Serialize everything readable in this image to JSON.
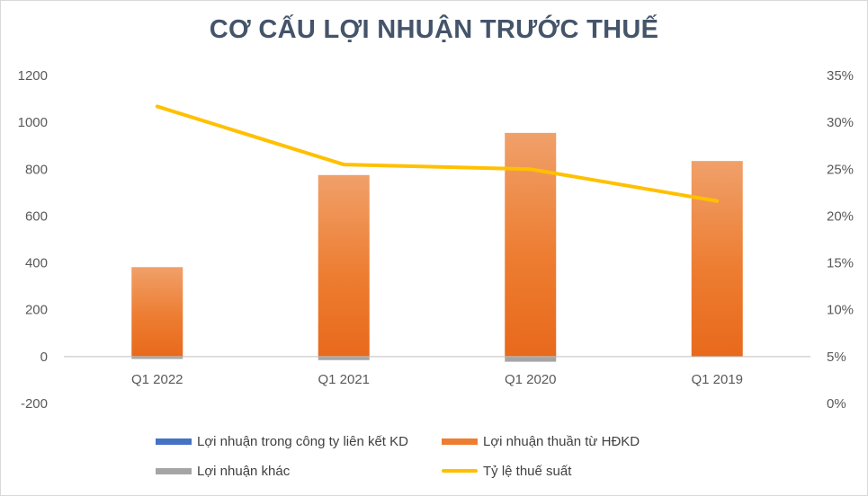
{
  "chart_data": {
    "type": "bar",
    "title": "CƠ CẤU LỢI NHUẬN TRƯỚC THUẾ",
    "categories": [
      "Q1 2022",
      "Q1 2021",
      "Q1 2020",
      "Q1 2019"
    ],
    "series": [
      {
        "name": "Lợi nhuận trong công ty liên kết KD",
        "type": "bar",
        "axis": "left",
        "values": [
          0,
          0,
          0,
          0
        ],
        "color": "#4472c4"
      },
      {
        "name": "Lợi nhuận thuần từ HĐKD",
        "type": "bar",
        "axis": "left",
        "values": [
          382,
          775,
          955,
          835
        ],
        "color": "#ed7d31"
      },
      {
        "name": "Lợi nhuận khác",
        "type": "bar",
        "axis": "left",
        "values": [
          -10,
          -15,
          -22,
          0
        ],
        "color": "#a5a5a5"
      },
      {
        "name": "Tỷ lệ thuế suất",
        "type": "line",
        "axis": "right",
        "values": [
          0.317,
          0.255,
          0.25,
          0.216
        ],
        "color": "#ffc000"
      }
    ],
    "ylim": [
      -200,
      1200
    ],
    "yticks": [
      "1200",
      "1000",
      "800",
      "600",
      "400",
      "200",
      "0",
      "-200"
    ],
    "y2lim": [
      0,
      0.35
    ],
    "y2ticks": [
      "35%",
      "30%",
      "25%",
      "20%",
      "15%",
      "10%",
      "5%",
      "0%"
    ],
    "grid": false,
    "legend": "bottom"
  }
}
